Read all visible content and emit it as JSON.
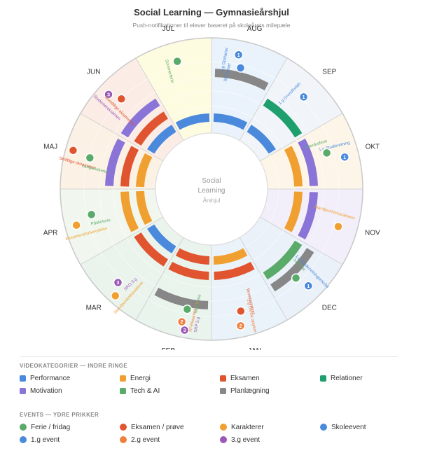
{
  "header": {
    "title": "Social Learning — Gymnasieårshjul",
    "subtitle": "Push-notifikationer til elever baseret på skoleårets milepæle"
  },
  "center": {
    "line1": "Social",
    "line2": "Learning",
    "line3": "Årshjul"
  },
  "colors": {
    "Performance": "#4a89dc",
    "Energi": "#f0a030",
    "Eksamen": "#e05530",
    "Relationer": "#1f9e6e",
    "Motivation": "#8a74d8",
    "Tech & AI": "#5aaa6a",
    "Planlægning": "#878787",
    "Ferie / fridag": "#5aaa6a",
    "Eksamen / prøve": "#e05530",
    "Karakterer": "#f0a030",
    "Skoleevent": "#4a89dc",
    "1.g event": "#4a89dc",
    "2.g event": "#f08040",
    "3.g event": "#9b59b6"
  },
  "chart_data": {
    "type": "radial",
    "months": [
      {
        "name": "AUG",
        "bg": "#eaf3fb"
      },
      {
        "name": "SEP",
        "bg": "#f1f5f9"
      },
      {
        "name": "OKT",
        "bg": "#fdf5e8"
      },
      {
        "name": "NOV",
        "bg": "#f2eefa"
      },
      {
        "name": "DEC",
        "bg": "#eaf1f9"
      },
      {
        "name": "JAN",
        "bg": "#eaf2fa"
      },
      {
        "name": "FEB",
        "bg": "#e9f4ec"
      },
      {
        "name": "MAR",
        "bg": "#eaf4ec"
      },
      {
        "name": "APR",
        "bg": "#f1f7ee"
      },
      {
        "name": "MAJ",
        "bg": "#fbf1e4"
      },
      {
        "name": "JUN",
        "bg": "#fbece6"
      },
      {
        "name": "JUL",
        "bg": "#fdfbe0"
      }
    ],
    "video_arcs": [
      {
        "month": "AUG",
        "ring": 0,
        "category": "Performance"
      },
      {
        "month": "AUG",
        "ring": 3,
        "category": "Planlægning"
      },
      {
        "month": "SEP",
        "ring": 0,
        "category": "Performance"
      },
      {
        "month": "SEP",
        "ring": 2,
        "category": "Relationer"
      },
      {
        "month": "OKT",
        "ring": 1,
        "category": "Energi"
      },
      {
        "month": "OKT",
        "ring": 2,
        "category": "Motivation"
      },
      {
        "month": "NOV",
        "ring": 1,
        "category": "Energi"
      },
      {
        "month": "NOV",
        "ring": 2,
        "category": "Motivation"
      },
      {
        "month": "DEC",
        "ring": 2,
        "category": "Tech & AI"
      },
      {
        "month": "DEC",
        "ring": 3,
        "category": "Planlægning"
      },
      {
        "month": "JAN",
        "ring": 0,
        "category": "Energi"
      },
      {
        "month": "JAN",
        "ring": 1,
        "category": "Eksamen"
      },
      {
        "month": "FEB",
        "ring": 0,
        "category": "Eksamen"
      },
      {
        "month": "FEB",
        "ring": 1,
        "category": "Eksamen"
      },
      {
        "month": "FEB",
        "ring": 3,
        "category": "Planlægning"
      },
      {
        "month": "MAR",
        "ring": 0,
        "category": "Performance"
      },
      {
        "month": "MAR",
        "ring": 1,
        "category": "Eksamen"
      },
      {
        "month": "APR",
        "ring": 0,
        "category": "Energi"
      },
      {
        "month": "APR",
        "ring": 1,
        "category": "Energi"
      },
      {
        "month": "MAJ",
        "ring": 0,
        "category": "Energi"
      },
      {
        "month": "MAJ",
        "ring": 1,
        "category": "Eksamen"
      },
      {
        "month": "MAJ",
        "ring": 2,
        "category": "Motivation"
      },
      {
        "month": "JUN",
        "ring": 0,
        "category": "Performance"
      },
      {
        "month": "JUN",
        "ring": 1,
        "category": "Eksamen"
      },
      {
        "month": "JUN",
        "ring": 2,
        "category": "Motivation"
      },
      {
        "month": "JUL",
        "ring": 0,
        "category": "Performance"
      }
    ],
    "events": [
      {
        "month": "AUG",
        "pos": 0.38,
        "r": 0.85,
        "label": "1.g Opstarter",
        "type": "1.g event",
        "badge": "1"
      },
      {
        "month": "AUG",
        "pos": 0.45,
        "r": 0.72,
        "label": "Skolestart",
        "type": "Skoleevent",
        "badge": ""
      },
      {
        "month": "SEP",
        "pos": 0.5,
        "r": 0.78,
        "label": "1.g Grundforløb",
        "type": "1.g event",
        "badge": "1"
      },
      {
        "month": "OKT",
        "pos": 0.55,
        "r": 0.85,
        "label": "1.g Studieretning",
        "type": "1.g event",
        "badge": "1"
      },
      {
        "month": "OKT",
        "pos": 0.42,
        "r": 0.68,
        "label": "Efterårsferie",
        "type": "Ferie / fridag",
        "badge": ""
      },
      {
        "month": "NOV",
        "pos": 0.55,
        "r": 0.8,
        "label": "Standpunktskarakterer",
        "type": "Karakterer",
        "badge": ""
      },
      {
        "month": "DEC",
        "pos": 0.5,
        "r": 0.85,
        "label": "1.g Studieretningsmodul",
        "type": "1.g event",
        "badge": "1"
      },
      {
        "month": "DEC",
        "pos": 0.55,
        "r": 0.7,
        "label": "Juleferie",
        "type": "Ferie / fridag",
        "badge": ""
      },
      {
        "month": "JAN",
        "pos": 0.6,
        "r": 0.88,
        "label": "2.g Dansk opgave",
        "type": "2.g event",
        "badge": "2"
      },
      {
        "month": "JAN",
        "pos": 0.55,
        "r": 0.73,
        "label": "Terminsprøver",
        "type": "Eksamen / prøve",
        "badge": ""
      },
      {
        "month": "FEB",
        "pos": 0.36,
        "r": 0.92,
        "label": "SRP 3.g",
        "type": "3.g event",
        "badge": "3"
      },
      {
        "month": "FEB",
        "pos": 0.42,
        "r": 0.84,
        "label": "AT-Eksamen 2.g",
        "type": "2.g event",
        "badge": "2"
      },
      {
        "month": "FEB",
        "pos": 0.38,
        "r": 0.7,
        "label": "Vinterferie",
        "type": "Ferie / fridag",
        "badge": ""
      },
      {
        "month": "MAR",
        "pos": 0.5,
        "r": 0.8,
        "label": "SRO 3.g",
        "type": "3.g event",
        "badge": "3"
      },
      {
        "month": "MAR",
        "pos": 0.4,
        "r": 0.92,
        "label": "Standpunktskarakterer",
        "type": "Karakterer",
        "badge": ""
      },
      {
        "month": "APR",
        "pos": 0.6,
        "r": 0.7,
        "label": "Påskeferie",
        "type": "Ferie / fridag",
        "badge": ""
      },
      {
        "month": "APR",
        "pos": 0.5,
        "r": 0.88,
        "label": "Eksamensforberedelse",
        "type": "Karakterer",
        "badge": ""
      },
      {
        "month": "MAJ",
        "pos": 0.52,
        "r": 0.92,
        "label": "Skriftlige eksamener",
        "type": "Eksamen / prøve",
        "badge": ""
      },
      {
        "month": "MAJ",
        "pos": 0.48,
        "r": 0.73,
        "label": "Langweekend",
        "type": "Ferie / fridag",
        "badge": ""
      },
      {
        "month": "JUN",
        "pos": 0.42,
        "r": 0.88,
        "label": "Studentereksamen",
        "type": "3.g event",
        "badge": "3"
      },
      {
        "month": "JUN",
        "pos": 0.5,
        "r": 0.75,
        "label": "Mundtlige eksamener",
        "type": "Eksamen / prøve",
        "badge": ""
      },
      {
        "month": "JUL",
        "pos": 0.5,
        "r": 0.8,
        "label": "Sommerferie",
        "type": "Ferie / fridag",
        "badge": ""
      }
    ]
  },
  "legend_videos": {
    "title": "VIDEOKATEGORIER — INDRE RINGE",
    "items": [
      "Performance",
      "Energi",
      "Eksamen",
      "Relationer",
      "Motivation",
      "Tech & AI",
      "Planlægning"
    ]
  },
  "legend_events": {
    "title": "EVENTS — YDRE PRIKKER",
    "items": [
      "Ferie / fridag",
      "Eksamen / prøve",
      "Karakterer",
      "Skoleevent",
      "1.g event",
      "2.g event",
      "3.g event"
    ]
  }
}
